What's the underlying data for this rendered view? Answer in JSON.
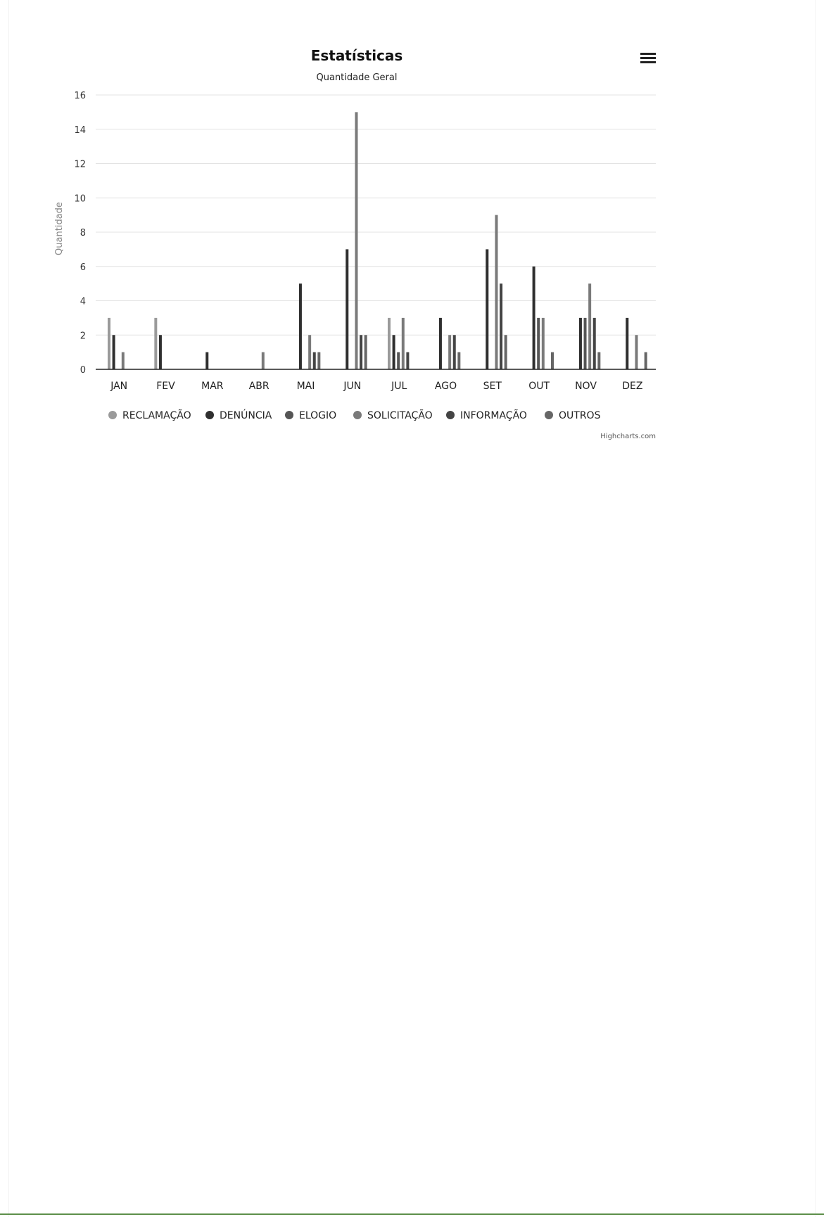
{
  "header": {
    "menu_icon": "hamburger-menu-icon"
  },
  "credit": "Highcharts.com",
  "chart_data": {
    "type": "bar",
    "title": "Estatísticas",
    "subtitle": "Quantidade Geral",
    "xlabel": "",
    "ylabel": "Quantidade",
    "ylim": [
      0,
      16
    ],
    "yticks": [
      0,
      2,
      4,
      6,
      8,
      10,
      12,
      14,
      16
    ],
    "grid": true,
    "legend_placement": "bottom",
    "categories": [
      "JAN",
      "FEV",
      "MAR",
      "ABR",
      "MAI",
      "JUN",
      "JUL",
      "AGO",
      "SET",
      "OUT",
      "NOV",
      "DEZ"
    ],
    "series": [
      {
        "name": "RECLAMAÇÃO",
        "color": "#9a9a9a",
        "values": [
          3,
          3,
          0,
          0,
          0,
          0,
          3,
          0,
          0,
          0,
          0,
          0
        ]
      },
      {
        "name": "DENÚNCIA",
        "color": "#2f2f2f",
        "values": [
          2,
          2,
          1,
          0,
          5,
          7,
          2,
          3,
          7,
          6,
          3,
          3
        ]
      },
      {
        "name": "ELOGIO",
        "color": "#555555",
        "values": [
          0,
          0,
          0,
          0,
          0,
          0,
          1,
          0,
          0,
          3,
          3,
          0
        ]
      },
      {
        "name": "SOLICITAÇÃO",
        "color": "#7a7a7a",
        "values": [
          1,
          0,
          0,
          1,
          2,
          15,
          3,
          2,
          9,
          3,
          5,
          2
        ]
      },
      {
        "name": "INFORMAÇÃO",
        "color": "#444444",
        "values": [
          0,
          0,
          0,
          0,
          1,
          2,
          1,
          2,
          5,
          0,
          3,
          0
        ]
      },
      {
        "name": "OUTROS",
        "color": "#666666",
        "values": [
          0,
          0,
          0,
          0,
          1,
          2,
          0,
          1,
          2,
          1,
          1,
          1
        ]
      }
    ]
  }
}
